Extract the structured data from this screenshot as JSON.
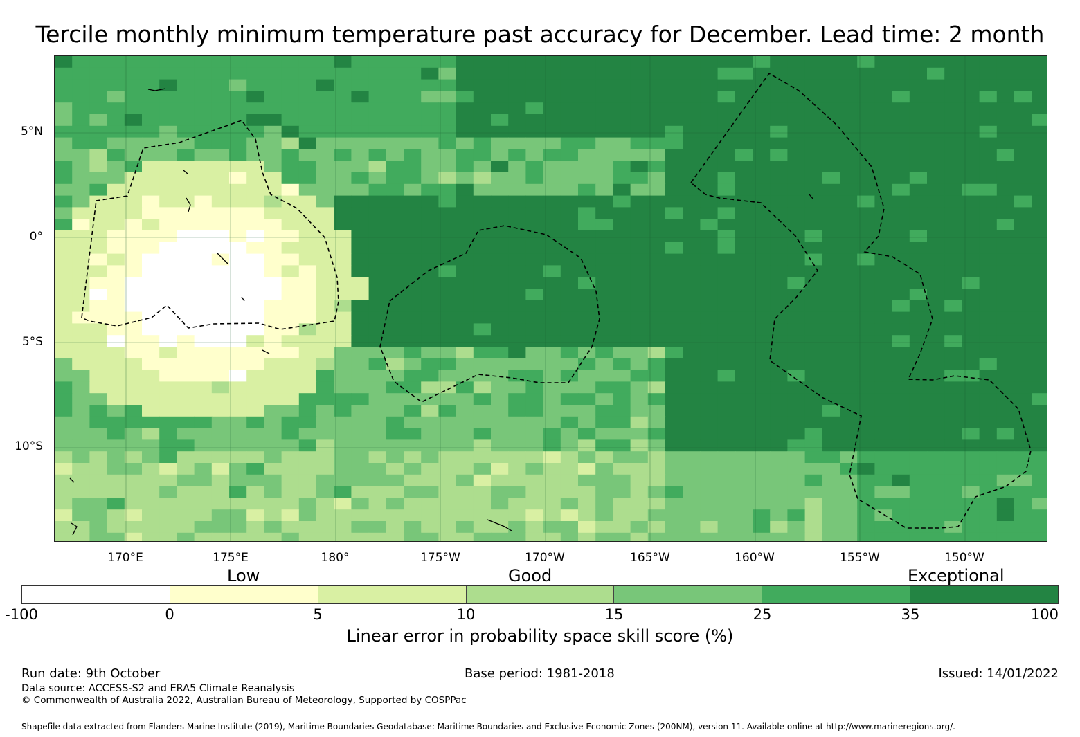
{
  "title": "Tercile monthly minimum temperature past accuracy for December. Lead time: 2 month",
  "map": {
    "lat_ticks": [
      "5°N",
      "0°",
      "5°S",
      "10°S"
    ],
    "lon_ticks": [
      "170°E",
      "175°E",
      "180°",
      "175°W",
      "170°W",
      "165°W",
      "160°W",
      "155°W",
      "150°W"
    ]
  },
  "legend": {
    "categories": [
      "Low",
      "Good",
      "Exceptional"
    ],
    "ticks": [
      "-100",
      "0",
      "5",
      "10",
      "15",
      "25",
      "35",
      "100"
    ],
    "colors": [
      "#ffffff",
      "#ffffcc",
      "#d9f0a3",
      "#addd8e",
      "#78c679",
      "#41ab5d",
      "#238443"
    ],
    "title": "Linear error in probability space skill score (%)"
  },
  "footer": {
    "run_date": "Run date: 9th October",
    "base_period": "Base period: 1981-2018",
    "issued": "Issued: 14/01/2022",
    "data_source": "Data source: ACCESS-S2 and ERA5 Climate Reanalysis",
    "copyright": "© Commonwealth of Australia 2022, Australian Bureau of Meteorology, Supported by COSPPac",
    "shapefile": "Shapefile data extracted from Flanders Marine Institute (2019), Maritime Boundaries Geodatabase: Maritime Boundaries and Exclusive Economic Zones (200NM), version 11. Available online at http://www.marineregions.org/."
  }
}
